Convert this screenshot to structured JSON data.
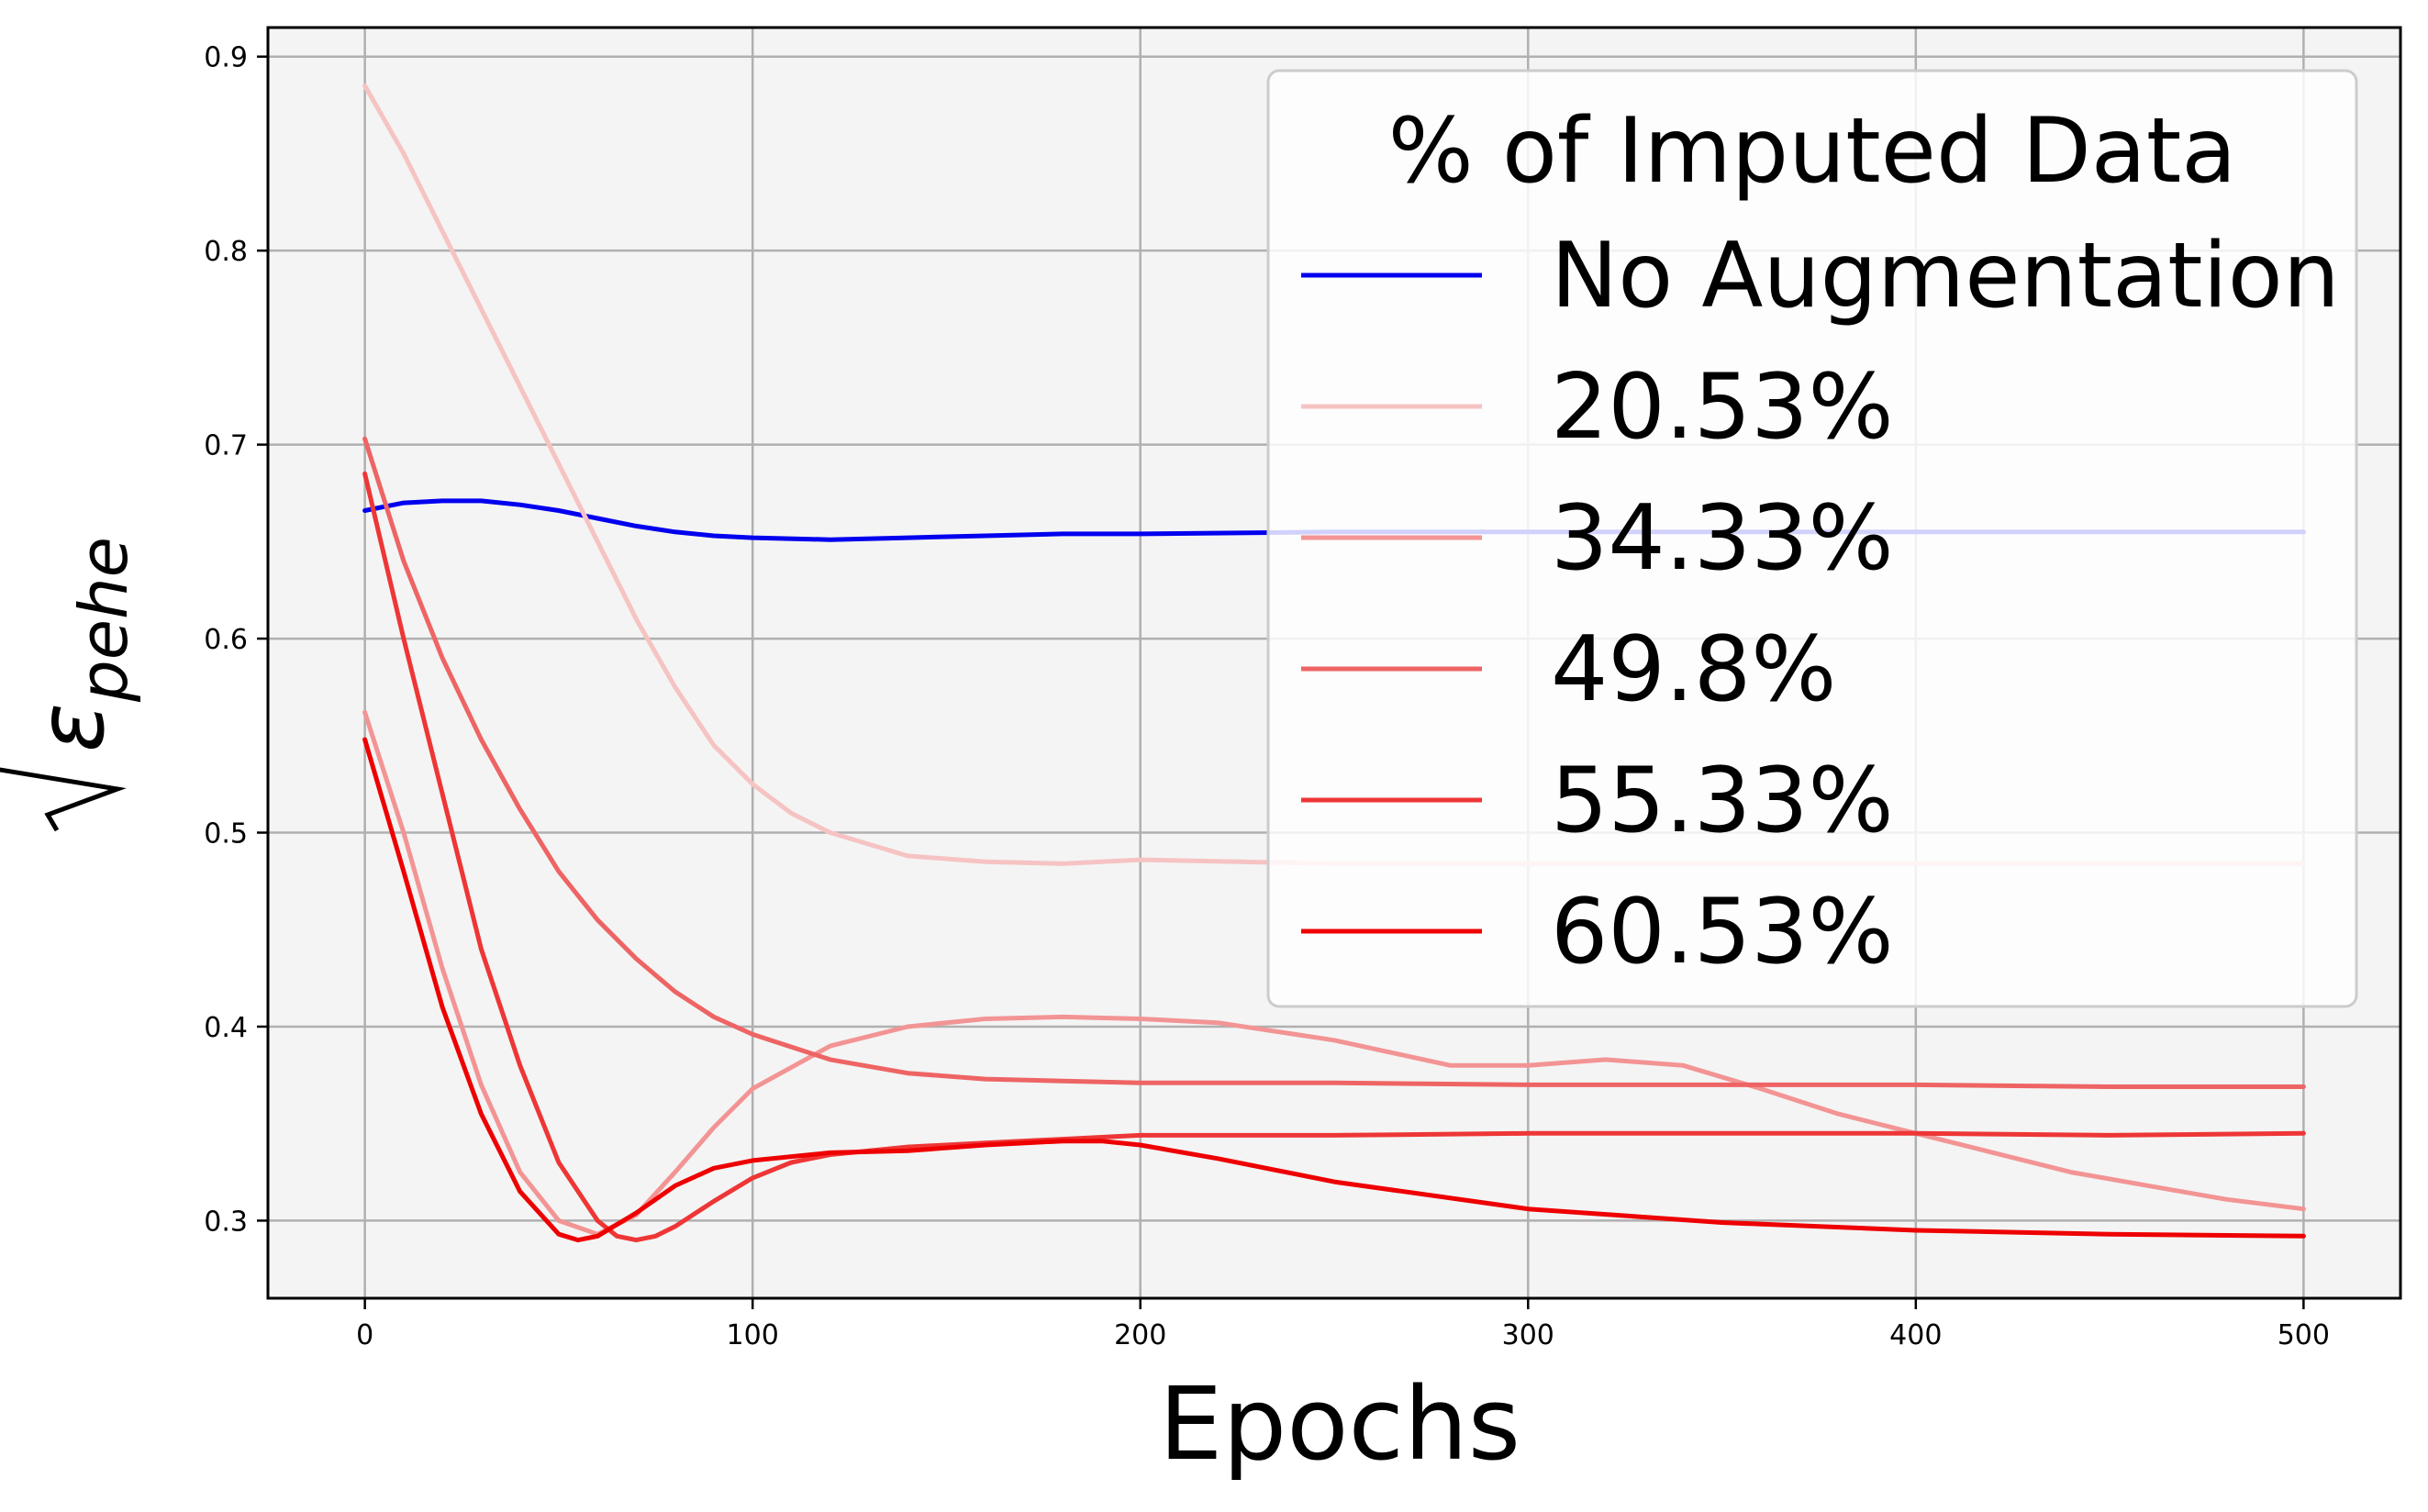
{
  "chart_data": {
    "type": "line",
    "title": "",
    "xlabel": "Epochs",
    "ylabel": "√ε_pehe",
    "ylabel_symbol": "ε",
    "ylabel_subscript": "pehe",
    "xlim": [
      -25,
      525
    ],
    "ylim": [
      0.26,
      0.915
    ],
    "xticks": [
      0,
      100,
      200,
      300,
      400,
      500
    ],
    "xtick_labels": [
      "0",
      "100",
      "200",
      "300",
      "400",
      "500"
    ],
    "yticks": [
      0.3,
      0.4,
      0.5,
      0.6,
      0.7,
      0.8,
      0.9
    ],
    "ytick_labels": [
      "0.3",
      "0.4",
      "0.5",
      "0.6",
      "0.7",
      "0.8",
      "0.9"
    ],
    "grid": true,
    "background_color": "#f4f4f4",
    "legend": {
      "title": "% of Imputed Data",
      "placement": "upper-right"
    },
    "series": [
      {
        "name": "No Augmentation",
        "color": "#0000ee",
        "x": [
          0,
          10,
          20,
          30,
          40,
          50,
          60,
          70,
          80,
          90,
          100,
          120,
          140,
          160,
          180,
          200,
          250,
          300,
          350,
          400,
          450,
          500
        ],
        "y": [
          0.666,
          0.67,
          0.671,
          0.671,
          0.669,
          0.666,
          0.662,
          0.658,
          0.655,
          0.653,
          0.652,
          0.651,
          0.652,
          0.653,
          0.654,
          0.654,
          0.655,
          0.655,
          0.655,
          0.655,
          0.655,
          0.655
        ]
      },
      {
        "name": "20.53%",
        "color": "#f6c3c3",
        "x": [
          0,
          10,
          20,
          30,
          40,
          50,
          60,
          70,
          80,
          90,
          100,
          110,
          120,
          140,
          160,
          180,
          200,
          250,
          300,
          350,
          400,
          450,
          500
        ],
        "y": [
          0.885,
          0.85,
          0.81,
          0.77,
          0.73,
          0.69,
          0.65,
          0.61,
          0.575,
          0.545,
          0.525,
          0.51,
          0.5,
          0.488,
          0.485,
          0.484,
          0.486,
          0.484,
          0.484,
          0.484,
          0.484,
          0.484,
          0.484
        ]
      },
      {
        "name": "34.33%",
        "color": "#f39494",
        "x": [
          0,
          10,
          20,
          30,
          40,
          50,
          60,
          70,
          80,
          90,
          100,
          120,
          140,
          160,
          180,
          200,
          220,
          250,
          280,
          300,
          320,
          340,
          360,
          380,
          400,
          420,
          440,
          460,
          480,
          500
        ],
        "y": [
          0.562,
          0.5,
          0.43,
          0.37,
          0.325,
          0.3,
          0.293,
          0.303,
          0.325,
          0.348,
          0.368,
          0.39,
          0.4,
          0.404,
          0.405,
          0.404,
          0.402,
          0.393,
          0.38,
          0.38,
          0.383,
          0.38,
          0.368,
          0.355,
          0.345,
          0.335,
          0.325,
          0.318,
          0.311,
          0.306
        ]
      },
      {
        "name": "49.8%",
        "color": "#ee6464",
        "x": [
          0,
          10,
          20,
          30,
          40,
          50,
          60,
          70,
          80,
          90,
          100,
          120,
          140,
          160,
          180,
          200,
          250,
          300,
          350,
          400,
          450,
          500
        ],
        "y": [
          0.703,
          0.64,
          0.59,
          0.548,
          0.512,
          0.48,
          0.455,
          0.435,
          0.418,
          0.405,
          0.396,
          0.383,
          0.376,
          0.373,
          0.372,
          0.371,
          0.371,
          0.37,
          0.37,
          0.37,
          0.369,
          0.369
        ]
      },
      {
        "name": "55.33%",
        "color": "#ee3636",
        "x": [
          0,
          10,
          20,
          30,
          40,
          50,
          60,
          65,
          70,
          75,
          80,
          90,
          100,
          110,
          120,
          140,
          160,
          180,
          200,
          250,
          300,
          350,
          400,
          450,
          500
        ],
        "y": [
          0.685,
          0.6,
          0.52,
          0.44,
          0.38,
          0.33,
          0.3,
          0.292,
          0.29,
          0.292,
          0.297,
          0.31,
          0.322,
          0.33,
          0.334,
          0.338,
          0.34,
          0.342,
          0.344,
          0.344,
          0.345,
          0.345,
          0.345,
          0.344,
          0.345
        ]
      },
      {
        "name": "60.53%",
        "color": "#ee0000",
        "x": [
          0,
          10,
          20,
          30,
          40,
          50,
          55,
          60,
          70,
          80,
          90,
          100,
          120,
          140,
          160,
          180,
          190,
          200,
          220,
          250,
          300,
          350,
          400,
          450,
          500
        ],
        "y": [
          0.548,
          0.48,
          0.41,
          0.355,
          0.315,
          0.293,
          0.29,
          0.292,
          0.304,
          0.318,
          0.327,
          0.331,
          0.335,
          0.336,
          0.339,
          0.341,
          0.341,
          0.339,
          0.332,
          0.32,
          0.306,
          0.299,
          0.295,
          0.293,
          0.292
        ]
      }
    ]
  }
}
